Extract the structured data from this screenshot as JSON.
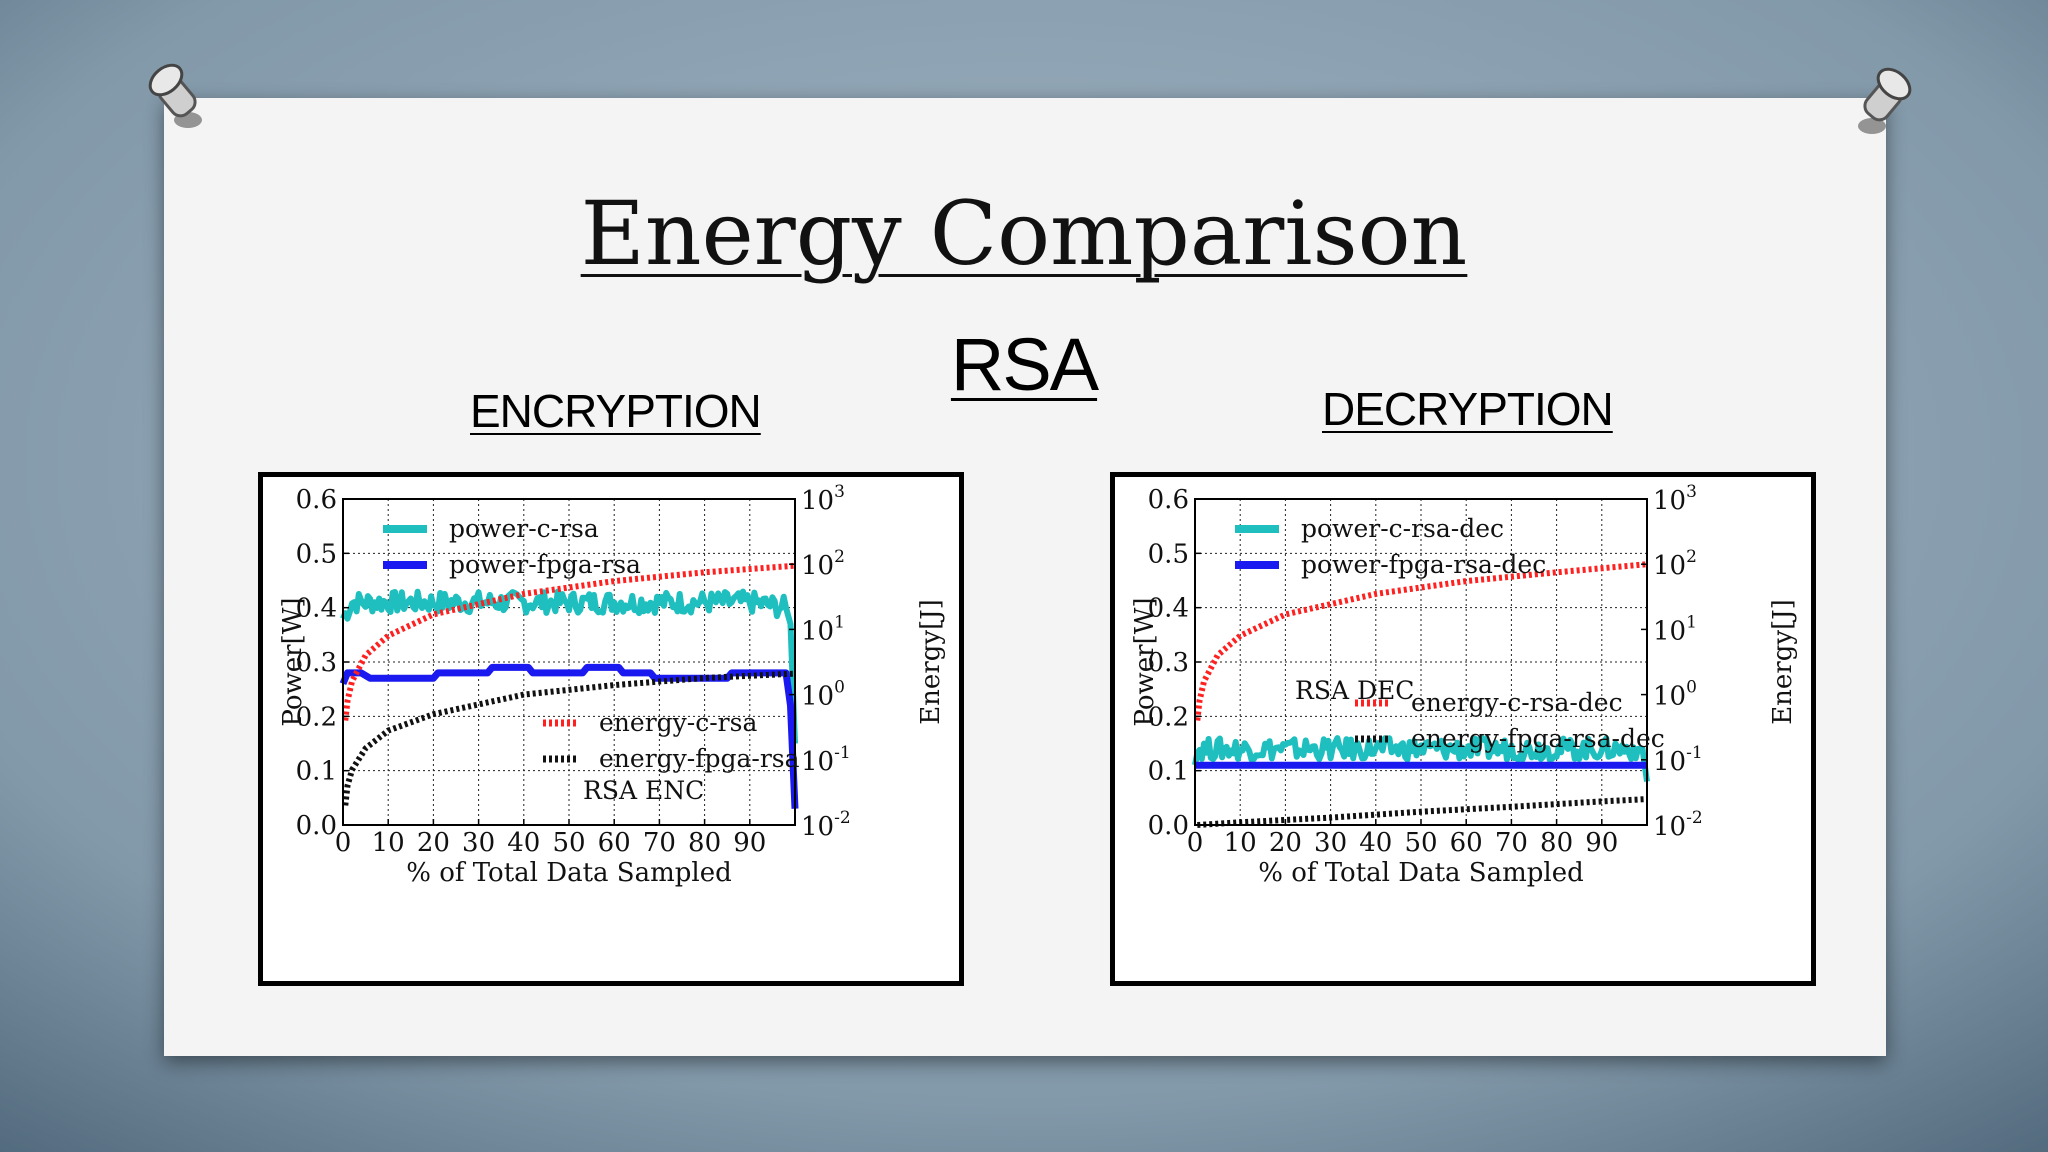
{
  "slide": {
    "title": "Energy Comparison",
    "subtitle": "RSA",
    "left_heading": "ENCRYPTION",
    "right_heading": "DECRYPTION"
  },
  "colors": {
    "background": "#7f97a9",
    "slide": "#f4f4f4",
    "power_c": "#1fbfbf",
    "power_fpga": "#1a1af0",
    "energy_c": "#ff2020",
    "energy_fpga": "#111111"
  },
  "chart_data": [
    {
      "type": "line",
      "annotation": "RSA ENC",
      "xlabel": "% of Total Data Sampled",
      "ylabel": "Power[W]",
      "y2label": "Energy[J]",
      "xlim": [
        0,
        100
      ],
      "ylim": [
        0.0,
        0.6
      ],
      "y2lim_log10": [
        -2,
        3
      ],
      "y2scale": "log",
      "grid": true,
      "xticks": [
        "0",
        "10",
        "20",
        "30",
        "40",
        "50",
        "60",
        "70",
        "80",
        "90"
      ],
      "yticks": [
        "0.0",
        "0.1",
        "0.2",
        "0.3",
        "0.4",
        "0.5",
        "0.6"
      ],
      "y2ticks": [
        {
          "base": "10",
          "exp": "-2"
        },
        {
          "base": "10",
          "exp": "-1"
        },
        {
          "base": "10",
          "exp": "0"
        },
        {
          "base": "10",
          "exp": "1"
        },
        {
          "base": "10",
          "exp": "2"
        },
        {
          "base": "10",
          "exp": "3"
        }
      ],
      "legend_top": [
        "power-c-rsa",
        "power-fpga-rsa"
      ],
      "legend_bottom": [
        "energy-c-rsa",
        "energy-fpga-rsa"
      ],
      "series": [
        {
          "name": "power-c-rsa",
          "axis": "left",
          "style": "noisy",
          "x": [
            0,
            2,
            5,
            10,
            20,
            30,
            40,
            50,
            60,
            70,
            80,
            90,
            98,
            99,
            100
          ],
          "y": [
            0.38,
            0.41,
            0.41,
            0.41,
            0.41,
            0.41,
            0.41,
            0.41,
            0.41,
            0.41,
            0.41,
            0.41,
            0.4,
            0.37,
            0.15
          ],
          "noise": 0.02
        },
        {
          "name": "power-fpga-rsa",
          "axis": "left",
          "style": "solid",
          "x": [
            0,
            1,
            4,
            6,
            20,
            21,
            32,
            33,
            38,
            39,
            41,
            42,
            53,
            54,
            61,
            62,
            68,
            69,
            85,
            86,
            98,
            99,
            100
          ],
          "y": [
            0.26,
            0.28,
            0.28,
            0.27,
            0.27,
            0.28,
            0.28,
            0.29,
            0.29,
            0.29,
            0.29,
            0.28,
            0.28,
            0.29,
            0.29,
            0.28,
            0.28,
            0.27,
            0.27,
            0.28,
            0.28,
            0.22,
            0.03
          ]
        },
        {
          "name": "energy-c-rsa",
          "axis": "right",
          "style": "dotted",
          "x": [
            0.5,
            1,
            2,
            5,
            10,
            20,
            40,
            60,
            80,
            100
          ],
          "y": [
            0.4,
            0.8,
            1.6,
            4,
            8,
            17,
            35,
            55,
            75,
            95
          ]
        },
        {
          "name": "energy-fpga-rsa",
          "axis": "right",
          "style": "dotted",
          "x": [
            0.5,
            1,
            2,
            5,
            10,
            20,
            40,
            60,
            80,
            100
          ],
          "y": [
            0.02,
            0.04,
            0.07,
            0.15,
            0.28,
            0.5,
            1.0,
            1.4,
            1.8,
            2.1
          ]
        }
      ]
    },
    {
      "type": "line",
      "annotation": "RSA DEC",
      "xlabel": "% of Total Data Sampled",
      "ylabel": "Power[W]",
      "y2label": "Energy[J]",
      "xlim": [
        0,
        100
      ],
      "ylim": [
        0.0,
        0.6
      ],
      "y2lim_log10": [
        -2,
        3
      ],
      "y2scale": "log",
      "grid": true,
      "xticks": [
        "0",
        "10",
        "20",
        "30",
        "40",
        "50",
        "60",
        "70",
        "80",
        "90"
      ],
      "yticks": [
        "0.0",
        "0.1",
        "0.2",
        "0.3",
        "0.4",
        "0.5",
        "0.6"
      ],
      "y2ticks": [
        {
          "base": "10",
          "exp": "-2"
        },
        {
          "base": "10",
          "exp": "-1"
        },
        {
          "base": "10",
          "exp": "0"
        },
        {
          "base": "10",
          "exp": "1"
        },
        {
          "base": "10",
          "exp": "2"
        },
        {
          "base": "10",
          "exp": "3"
        }
      ],
      "legend_top": [
        "power-c-rsa-dec",
        "power-fpga-rsa-dec"
      ],
      "legend_bottom": [
        "energy-c-rsa-dec",
        "energy-fpga-rsa-dec"
      ],
      "series": [
        {
          "name": "power-c-rsa-dec",
          "axis": "left",
          "style": "noisy",
          "x": [
            0,
            1,
            5,
            20,
            40,
            60,
            80,
            99,
            100
          ],
          "y": [
            0.13,
            0.14,
            0.14,
            0.14,
            0.14,
            0.14,
            0.14,
            0.14,
            0.08
          ],
          "noise": 0.02
        },
        {
          "name": "power-fpga-rsa-dec",
          "axis": "left",
          "style": "solid",
          "x": [
            0,
            100
          ],
          "y": [
            0.11,
            0.11
          ]
        },
        {
          "name": "energy-c-rsa-dec",
          "axis": "right",
          "style": "dotted",
          "x": [
            0.5,
            1,
            2,
            5,
            10,
            20,
            40,
            60,
            80,
            100
          ],
          "y": [
            0.4,
            0.8,
            1.6,
            4,
            8,
            17,
            35,
            55,
            75,
            100
          ]
        },
        {
          "name": "energy-fpga-rsa-dec",
          "axis": "right",
          "style": "dotted",
          "x": [
            0.5,
            10,
            30,
            50,
            70,
            90,
            100
          ],
          "y": [
            0.01,
            0.011,
            0.013,
            0.016,
            0.019,
            0.023,
            0.025
          ]
        }
      ]
    }
  ]
}
